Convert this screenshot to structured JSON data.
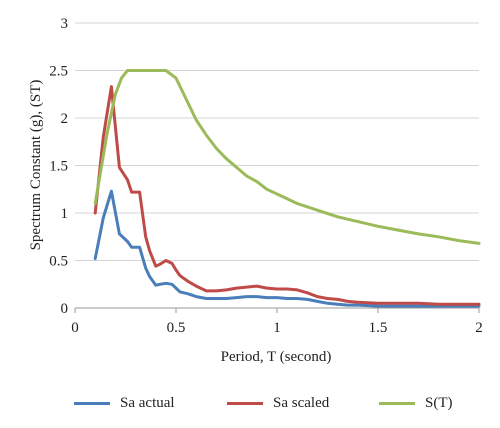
{
  "chart_data": {
    "type": "line",
    "xlabel": "Period, T (second)",
    "ylabel": "Spectrum Constant (g), (ST)",
    "xlim": [
      0,
      2
    ],
    "ylim": [
      0,
      3
    ],
    "x_ticks": [
      "0",
      "0.5",
      "1",
      "1.5",
      "2"
    ],
    "y_ticks": [
      "0",
      "0.5",
      "1",
      "1.5",
      "2",
      "2.5",
      "3"
    ],
    "grid": "horizontal",
    "legend_position": "bottom",
    "series": [
      {
        "name": "Sa actual",
        "color": "#4a7ebb",
        "x": [
          0.1,
          0.14,
          0.18,
          0.22,
          0.26,
          0.28,
          0.32,
          0.35,
          0.37,
          0.4,
          0.42,
          0.45,
          0.48,
          0.5,
          0.52,
          0.56,
          0.6,
          0.65,
          0.7,
          0.75,
          0.8,
          0.85,
          0.9,
          0.95,
          1.0,
          1.05,
          1.1,
          1.15,
          1.2,
          1.25,
          1.3,
          1.35,
          1.4,
          1.5,
          1.6,
          1.7,
          1.8,
          1.9,
          2.0
        ],
        "y": [
          0.52,
          0.95,
          1.23,
          0.78,
          0.7,
          0.64,
          0.64,
          0.42,
          0.33,
          0.24,
          0.25,
          0.26,
          0.25,
          0.21,
          0.17,
          0.15,
          0.12,
          0.1,
          0.1,
          0.1,
          0.11,
          0.12,
          0.12,
          0.11,
          0.11,
          0.1,
          0.1,
          0.09,
          0.07,
          0.05,
          0.04,
          0.03,
          0.03,
          0.02,
          0.02,
          0.02,
          0.02,
          0.02,
          0.02
        ]
      },
      {
        "name": "Sa scaled",
        "color": "#be4b48",
        "x": [
          0.1,
          0.14,
          0.18,
          0.22,
          0.26,
          0.28,
          0.32,
          0.35,
          0.37,
          0.4,
          0.42,
          0.45,
          0.48,
          0.5,
          0.52,
          0.56,
          0.6,
          0.65,
          0.7,
          0.75,
          0.8,
          0.85,
          0.9,
          0.95,
          1.0,
          1.05,
          1.1,
          1.15,
          1.2,
          1.25,
          1.3,
          1.35,
          1.4,
          1.5,
          1.6,
          1.7,
          1.8,
          1.9,
          2.0
        ],
        "y": [
          1.0,
          1.8,
          2.33,
          1.48,
          1.35,
          1.22,
          1.22,
          0.75,
          0.6,
          0.44,
          0.46,
          0.5,
          0.47,
          0.4,
          0.34,
          0.28,
          0.23,
          0.18,
          0.18,
          0.19,
          0.21,
          0.22,
          0.23,
          0.21,
          0.2,
          0.2,
          0.19,
          0.16,
          0.12,
          0.1,
          0.09,
          0.07,
          0.06,
          0.05,
          0.05,
          0.05,
          0.04,
          0.04,
          0.04
        ]
      },
      {
        "name": "S(T)",
        "color": "#9bbb59",
        "x": [
          0.1,
          0.16,
          0.2,
          0.23,
          0.26,
          0.3,
          0.35,
          0.4,
          0.45,
          0.5,
          0.55,
          0.6,
          0.65,
          0.7,
          0.75,
          0.8,
          0.85,
          0.9,
          0.95,
          1.0,
          1.1,
          1.2,
          1.3,
          1.4,
          1.5,
          1.6,
          1.7,
          1.8,
          1.9,
          2.0
        ],
        "y": [
          1.1,
          1.85,
          2.25,
          2.42,
          2.5,
          2.5,
          2.5,
          2.5,
          2.5,
          2.42,
          2.2,
          1.98,
          1.82,
          1.68,
          1.57,
          1.48,
          1.39,
          1.33,
          1.25,
          1.2,
          1.1,
          1.03,
          0.96,
          0.91,
          0.86,
          0.82,
          0.78,
          0.75,
          0.71,
          0.68
        ]
      }
    ]
  }
}
